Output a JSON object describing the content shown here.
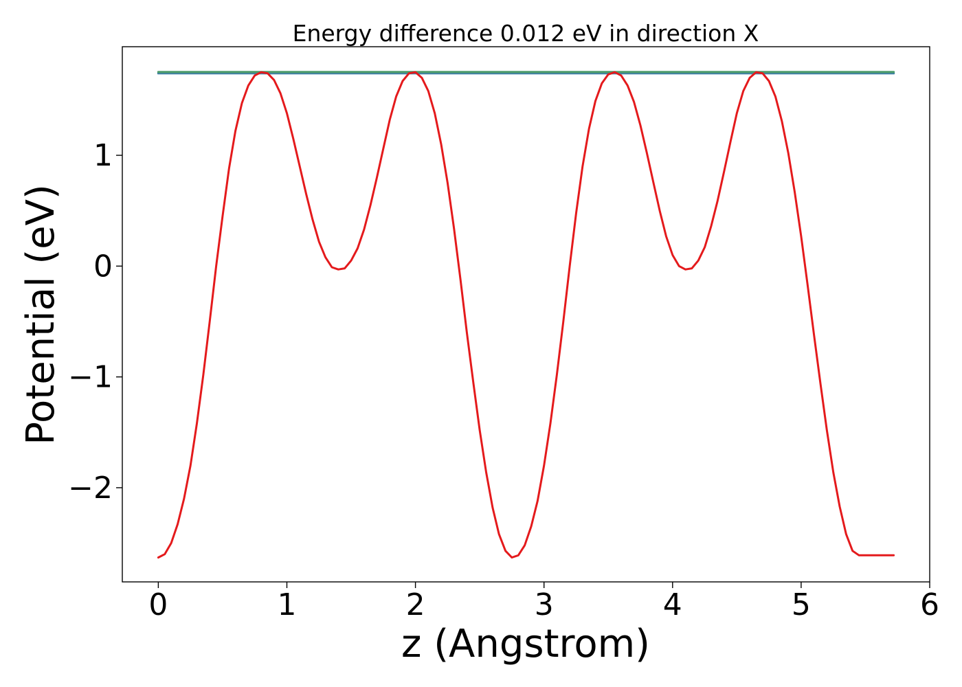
{
  "chart_data": {
    "type": "line",
    "title": "Energy difference 0.012 eV in direction X",
    "xlabel": "z (Angstrom)",
    "ylabel": "Potential (eV)",
    "xlim": [
      -0.28,
      6.0
    ],
    "ylim": [
      -2.85,
      1.98
    ],
    "xticks": [
      0,
      1,
      2,
      3,
      4,
      5,
      6
    ],
    "xtick_labels": [
      "0",
      "1",
      "2",
      "3",
      "4",
      "5",
      "6"
    ],
    "yticks": [
      -2,
      -1,
      0,
      1
    ],
    "ytick_labels": [
      "−2",
      "−1",
      "0",
      "1"
    ],
    "grid": false,
    "legend": "none",
    "series": [
      {
        "color": "#e41a1c",
        "x": [
          0.0,
          0.05,
          0.1,
          0.15,
          0.2,
          0.25,
          0.3,
          0.35,
          0.4,
          0.45,
          0.5,
          0.55,
          0.6,
          0.65,
          0.7,
          0.75,
          0.8,
          0.85,
          0.9,
          0.95,
          1.0,
          1.05,
          1.1,
          1.15,
          1.2,
          1.25,
          1.3,
          1.35,
          1.4,
          1.45,
          1.5,
          1.55,
          1.6,
          1.65,
          1.7,
          1.75,
          1.8,
          1.85,
          1.9,
          1.95,
          2.0,
          2.05,
          2.1,
          2.15,
          2.2,
          2.25,
          2.3,
          2.35,
          2.4,
          2.45,
          2.5,
          2.55,
          2.6,
          2.65,
          2.7,
          2.75,
          2.8,
          2.85,
          2.9,
          2.95,
          3.0,
          3.05,
          3.1,
          3.15,
          3.2,
          3.25,
          3.3,
          3.35,
          3.4,
          3.45,
          3.5,
          3.55,
          3.6,
          3.65,
          3.7,
          3.75,
          3.8,
          3.85,
          3.9,
          3.95,
          4.0,
          4.05,
          4.1,
          4.15,
          4.2,
          4.25,
          4.3,
          4.35,
          4.4,
          4.45,
          4.5,
          4.55,
          4.6,
          4.65,
          4.7,
          4.75,
          4.8,
          4.85,
          4.9,
          4.95,
          5.0,
          5.05,
          5.1,
          5.15,
          5.2,
          5.25,
          5.3,
          5.35,
          5.4,
          5.45,
          5.5,
          5.55,
          5.6,
          5.65,
          5.72
        ],
        "y": [
          -2.63,
          -2.6,
          -2.5,
          -2.33,
          -2.1,
          -1.8,
          -1.42,
          -0.98,
          -0.5,
          0.0,
          0.45,
          0.88,
          1.22,
          1.47,
          1.63,
          1.72,
          1.75,
          1.74,
          1.68,
          1.56,
          1.38,
          1.15,
          0.9,
          0.65,
          0.42,
          0.22,
          0.08,
          -0.01,
          -0.03,
          -0.02,
          0.05,
          0.16,
          0.33,
          0.55,
          0.8,
          1.06,
          1.32,
          1.53,
          1.67,
          1.74,
          1.75,
          1.7,
          1.58,
          1.38,
          1.1,
          0.75,
          0.34,
          -0.12,
          -0.6,
          -1.05,
          -1.48,
          -1.86,
          -2.18,
          -2.42,
          -2.57,
          -2.63,
          -2.61,
          -2.52,
          -2.35,
          -2.12,
          -1.8,
          -1.42,
          -0.98,
          -0.5,
          0.0,
          0.48,
          0.9,
          1.24,
          1.49,
          1.65,
          1.73,
          1.75,
          1.72,
          1.63,
          1.48,
          1.27,
          1.02,
          0.76,
          0.5,
          0.27,
          0.1,
          0.0,
          -0.03,
          -0.02,
          0.05,
          0.17,
          0.36,
          0.59,
          0.85,
          1.12,
          1.38,
          1.58,
          1.7,
          1.75,
          1.74,
          1.67,
          1.53,
          1.31,
          1.02,
          0.67,
          0.27,
          -0.17,
          -0.62,
          -1.06,
          -1.48,
          -1.86,
          -2.17,
          -2.42,
          -2.57,
          -2.61,
          -2.61,
          -2.61,
          -2.61,
          -2.61,
          -2.61
        ]
      },
      {
        "color": "#4c9c6b",
        "x": [
          0.0,
          5.72
        ],
        "y": [
          1.752,
          1.752
        ]
      },
      {
        "color": "#3f7fa8",
        "x": [
          0.0,
          5.72
        ],
        "y": [
          1.74,
          1.74
        ]
      }
    ]
  }
}
